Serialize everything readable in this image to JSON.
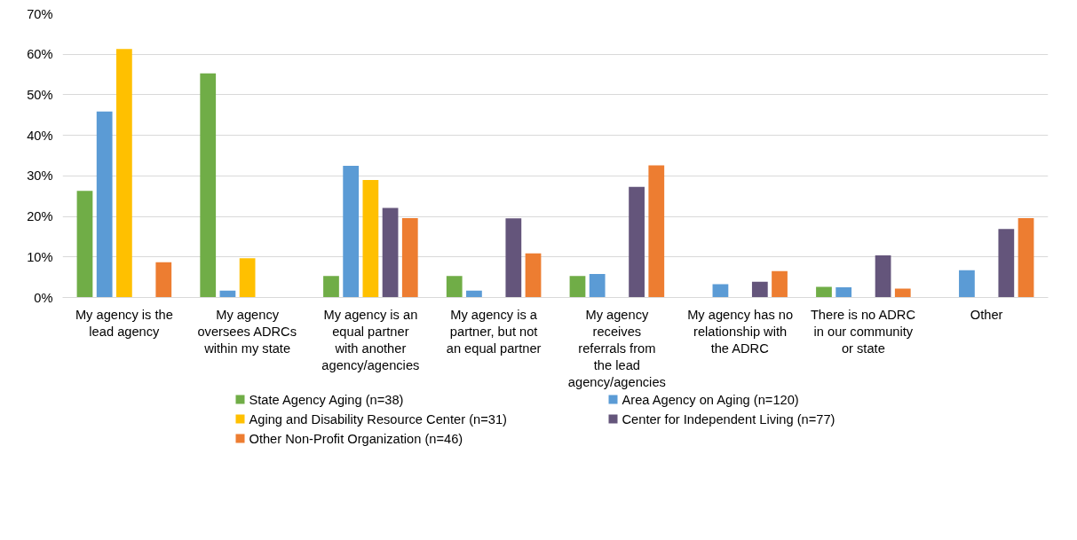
{
  "chart_data": {
    "type": "bar",
    "categories": [
      "My agency is the lead agency",
      "My agency oversees ADRCs within my state",
      "My agency is an equal partner with another agency/agencies",
      "My agency is a partner, but not an equal partner",
      "My agency receives referrals from the lead agency/agencies",
      "My agency has no relationship with the ADRC",
      "There is no ADRC in our community or state",
      "Other"
    ],
    "series": [
      {
        "name": "State Agency Aging (n=38)",
        "color": "#70ad47",
        "values": [
          26.3,
          55.3,
          5.3,
          5.3,
          5.3,
          0,
          2.6,
          0
        ]
      },
      {
        "name": "Area Agency on Aging (n=120)",
        "color": "#5b9bd5",
        "values": [
          45.9,
          1.7,
          32.5,
          1.7,
          5.8,
          3.3,
          2.5,
          6.7
        ]
      },
      {
        "name": "Aging and Disability Resource Center (n=31)",
        "color": "#ffc000",
        "values": [
          61.3,
          9.7,
          29.0,
          0,
          0,
          0,
          0,
          0
        ]
      },
      {
        "name": "Center for Independent Living (n=77)",
        "color": "#64557b",
        "values": [
          0,
          0,
          22.1,
          19.5,
          27.3,
          3.9,
          10.4,
          16.9
        ]
      },
      {
        "name": "Other Non-Profit Organization (n=46)",
        "color": "#ed7d31",
        "values": [
          8.7,
          0,
          19.6,
          10.9,
          32.6,
          6.5,
          2.2,
          19.6
        ]
      }
    ],
    "ylim": [
      0,
      70
    ],
    "yticks": [
      {
        "value": 0,
        "label": "0%"
      },
      {
        "value": 10,
        "label": "10%"
      },
      {
        "value": 20,
        "label": "20%"
      },
      {
        "value": 30,
        "label": "30%"
      },
      {
        "value": 40,
        "label": "40%"
      },
      {
        "value": 50,
        "label": "50%"
      },
      {
        "value": 60,
        "label": "60%"
      },
      {
        "value": 70,
        "label": "70%"
      }
    ],
    "grid": "y",
    "legend": "bottom"
  }
}
